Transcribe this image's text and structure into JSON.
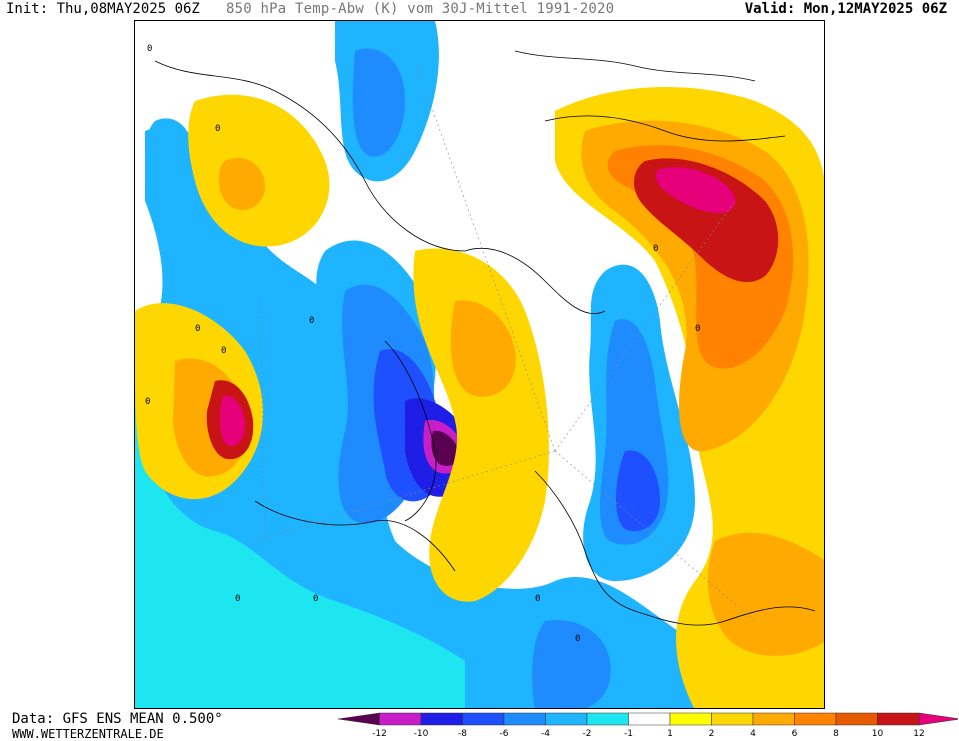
{
  "header": {
    "init": "Init: Thu,08MAY2025 06Z",
    "title": "850 hPa Temp-Abw (K) vom 30J-Mittel 1991-2020",
    "valid": "Valid: Mon,12MAY2025 06Z"
  },
  "footer": {
    "data": "Data: GFS ENS MEAN 0.500°",
    "url": "WWW.WETTERZENTRALE.DE"
  },
  "legend": {
    "labels": [
      "-12",
      "-10",
      "-8",
      "-6",
      "-4",
      "-2",
      "-1",
      "1",
      "2",
      "4",
      "6",
      "8",
      "10",
      "12"
    ],
    "colors": [
      "#5a0050",
      "#c81ec8",
      "#1e1ee6",
      "#1e50ff",
      "#1e8cff",
      "#1eb4ff",
      "#1ee6f0",
      "#ffffff",
      "#ffff00",
      "#ffd700",
      "#ffaa00",
      "#ff8200",
      "#e65a00",
      "#c81414",
      "#e6007a"
    ]
  },
  "map": {
    "contour_labels": [
      "0",
      "0",
      "0",
      "0",
      "0",
      "0",
      "0",
      "0",
      "0",
      "0",
      "0",
      "0"
    ]
  }
}
